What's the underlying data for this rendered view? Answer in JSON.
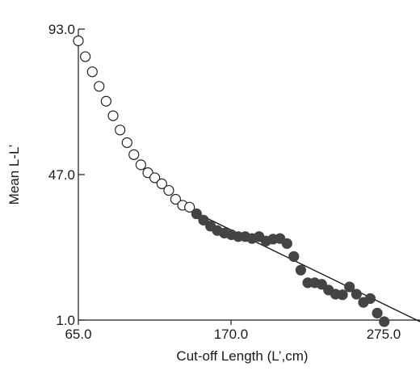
{
  "chart_data": {
    "type": "scatter",
    "title": "",
    "xlabel": "Cut-off Length (L’,cm)",
    "ylabel": "Mean L-L’",
    "xlim": [
      65,
      300
    ],
    "ylim": [
      1,
      93
    ],
    "x_ticks": [
      {
        "value": 65,
        "label": "65.0"
      },
      {
        "value": 170,
        "label": "170.0"
      },
      {
        "value": 275,
        "label": "275.0"
      }
    ],
    "y_ticks": [
      {
        "value": 1,
        "label": "1.0"
      },
      {
        "value": 47,
        "label": "47.0"
      },
      {
        "value": 93,
        "label": "93.0"
      }
    ],
    "grid": false,
    "legend": "none",
    "series": [
      {
        "marker": "open-circle",
        "color": "#222222",
        "points": [
          {
            "x": 65.0,
            "y": 89.3
          },
          {
            "x": 69.8,
            "y": 84.3
          },
          {
            "x": 74.6,
            "y": 79.5
          },
          {
            "x": 79.3,
            "y": 74.9
          },
          {
            "x": 84.1,
            "y": 70.2
          },
          {
            "x": 88.9,
            "y": 65.6
          },
          {
            "x": 93.7,
            "y": 61.1
          },
          {
            "x": 98.5,
            "y": 57.1
          },
          {
            "x": 103.2,
            "y": 53.3
          },
          {
            "x": 108.0,
            "y": 50.1
          },
          {
            "x": 112.8,
            "y": 47.6
          },
          {
            "x": 117.6,
            "y": 46.0
          },
          {
            "x": 122.4,
            "y": 44.1
          },
          {
            "x": 127.2,
            "y": 42.0
          },
          {
            "x": 131.9,
            "y": 39.2
          },
          {
            "x": 136.7,
            "y": 37.3
          },
          {
            "x": 141.5,
            "y": 36.7
          }
        ]
      },
      {
        "marker": "filled-circle",
        "color": "#444444",
        "points": [
          {
            "x": 146.3,
            "y": 34.6
          },
          {
            "x": 151.1,
            "y": 32.6
          },
          {
            "x": 155.9,
            "y": 30.7
          },
          {
            "x": 160.6,
            "y": 29.3
          },
          {
            "x": 165.4,
            "y": 28.5
          },
          {
            "x": 170.2,
            "y": 28.0
          },
          {
            "x": 175.0,
            "y": 27.4
          },
          {
            "x": 179.8,
            "y": 27.4
          },
          {
            "x": 184.5,
            "y": 26.8
          },
          {
            "x": 189.3,
            "y": 27.4
          },
          {
            "x": 194.1,
            "y": 26.0
          },
          {
            "x": 198.9,
            "y": 26.6
          },
          {
            "x": 203.7,
            "y": 26.8
          },
          {
            "x": 208.5,
            "y": 25.2
          },
          {
            "x": 213.2,
            "y": 21.1
          },
          {
            "x": 218.0,
            "y": 16.8
          },
          {
            "x": 222.8,
            "y": 12.8
          },
          {
            "x": 227.6,
            "y": 12.8
          },
          {
            "x": 232.4,
            "y": 12.3
          },
          {
            "x": 237.1,
            "y": 10.5
          },
          {
            "x": 241.9,
            "y": 9.2
          },
          {
            "x": 246.7,
            "y": 9.0
          },
          {
            "x": 251.5,
            "y": 11.5
          },
          {
            "x": 256.3,
            "y": 9.2
          },
          {
            "x": 261.1,
            "y": 6.6
          },
          {
            "x": 265.8,
            "y": 7.8
          },
          {
            "x": 270.6,
            "y": 3.2
          },
          {
            "x": 275.4,
            "y": 0.5
          }
        ]
      }
    ],
    "fit_line": {
      "from": {
        "x": 146.3,
        "y": 34.8
      },
      "to": {
        "x": 300.0,
        "y": 0.5
      }
    }
  }
}
